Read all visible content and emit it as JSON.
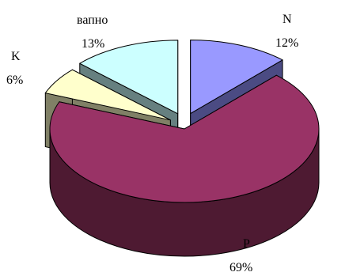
{
  "chart_data": {
    "type": "pie",
    "title": "",
    "style": "3d-exploded",
    "slices": [
      {
        "name": "N",
        "value": 12,
        "label": "12%",
        "color_top": "#9999FF",
        "color_side": "#4B4B83"
      },
      {
        "name": "P",
        "value": 69,
        "label": "69%",
        "color_top": "#993366",
        "color_side": "#4E1A32"
      },
      {
        "name": "K",
        "value": 6,
        "label": "6%",
        "color_top": "#FFFFCC",
        "color_side": "#808066"
      },
      {
        "name": "вапно",
        "value": 13,
        "label": "13%",
        "color_top": "#CCFFFF",
        "color_side": "#668080"
      }
    ]
  }
}
